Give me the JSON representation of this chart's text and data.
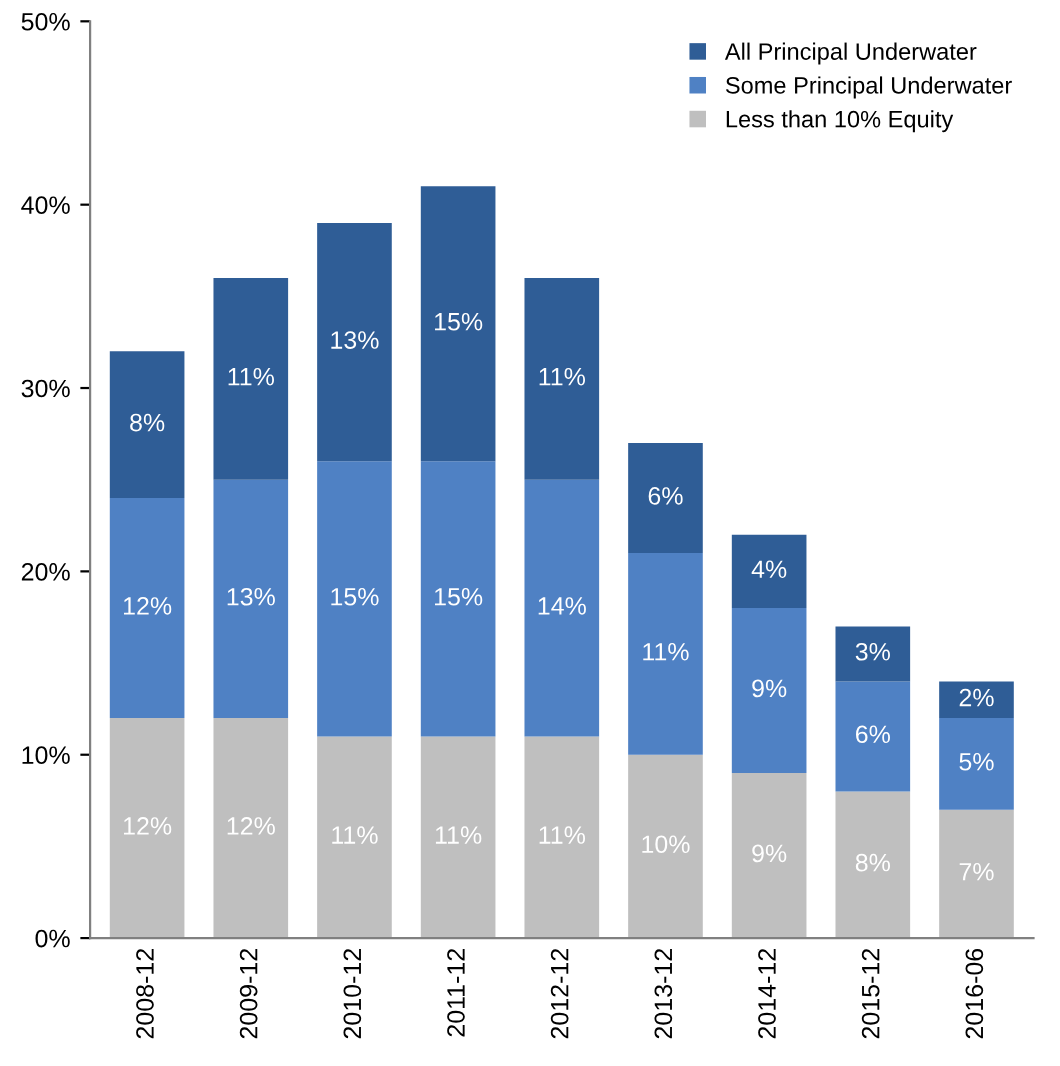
{
  "chart_data": {
    "type": "bar",
    "stacked": true,
    "categories": [
      "2008-12",
      "2009-12",
      "2010-12",
      "2011-12",
      "2012-12",
      "2013-12",
      "2014-12",
      "2015-12",
      "2016-06"
    ],
    "series": [
      {
        "name": "Less than 10% Equity",
        "color": "#bfbfbf",
        "values": [
          12,
          12,
          11,
          11,
          11,
          10,
          9,
          8,
          7
        ],
        "value_labels": [
          "12%",
          "12%",
          "11%",
          "11%",
          "11%",
          "10%",
          "9%",
          "8%",
          "7%"
        ]
      },
      {
        "name": "Some Principal Underwater",
        "color": "#4f81c4",
        "values": [
          12,
          13,
          15,
          15,
          14,
          11,
          9,
          6,
          5
        ],
        "value_labels": [
          "12%",
          "13%",
          "15%",
          "15%",
          "14%",
          "11%",
          "9%",
          "6%",
          "5%"
        ]
      },
      {
        "name": "All Principal Underwater",
        "color": "#2f5d96",
        "values": [
          8,
          11,
          13,
          15,
          11,
          6,
          4,
          3,
          2
        ],
        "value_labels": [
          "8%",
          "11%",
          "13%",
          "15%",
          "11%",
          "6%",
          "4%",
          "3%",
          "2%"
        ]
      }
    ],
    "ylim": [
      0,
      50
    ],
    "yticks": [
      {
        "value": 0,
        "label": "0%"
      },
      {
        "value": 10,
        "label": "10%"
      },
      {
        "value": 20,
        "label": "20%"
      },
      {
        "value": 30,
        "label": "30%"
      },
      {
        "value": 40,
        "label": "40%"
      },
      {
        "value": 50,
        "label": "50%"
      }
    ],
    "grid": false,
    "legend": "top right"
  }
}
